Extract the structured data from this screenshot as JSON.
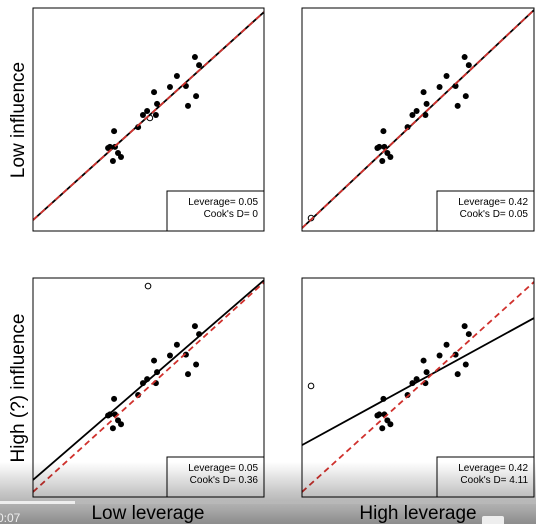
{
  "row_labels": [
    "Low influence",
    "High (?) influence"
  ],
  "column_labels": [
    "Low leverage",
    "High leverage"
  ],
  "player": {
    "time": "0:07"
  },
  "chart_data": [
    {
      "type": "scatter",
      "xlim": [
        0,
        100
      ],
      "ylim": [
        0,
        100
      ],
      "color": "#000000",
      "x": [
        70.1,
        71.9,
        62.3,
        59.3,
        52.4,
        66.2,
        67.1,
        70.6,
        53.7,
        49.4,
        53.2,
        47.6,
        45.5,
        35.1,
        33.3,
        35.5,
        36.8,
        38.1,
        34.6,
        32.5
      ],
      "values": [
        78.0,
        74.4,
        69.5,
        64.6,
        62.3,
        65.0,
        56.1,
        60.5,
        57.0,
        53.8,
        52.0,
        52.0,
        46.6,
        44.8,
        37.7,
        37.7,
        35.0,
        33.2,
        31.4,
        37.2
      ],
      "outlier": {
        "x": 50.6,
        "y": 50.7
      },
      "fit_lines": [
        {
          "color": "#000000",
          "dashed": false,
          "x": [
            0,
            100
          ],
          "y": [
            4.9,
            98.2
          ]
        },
        {
          "color": "#d0312d",
          "dashed": true,
          "x": [
            0,
            100
          ],
          "y": [
            4.9,
            98.2
          ]
        }
      ],
      "legend": [
        "Leverage= 0.05",
        "Cook's D= 0"
      ]
    },
    {
      "type": "scatter",
      "xlim": [
        0,
        100
      ],
      "ylim": [
        0,
        100
      ],
      "color": "#000000",
      "x": [
        70.1,
        71.9,
        62.3,
        59.3,
        52.4,
        66.2,
        67.1,
        70.6,
        53.7,
        49.4,
        53.2,
        47.6,
        45.5,
        35.1,
        33.3,
        35.5,
        36.8,
        38.1,
        34.6,
        32.5
      ],
      "values": [
        78.0,
        74.4,
        69.5,
        64.6,
        62.3,
        65.0,
        56.1,
        60.5,
        57.0,
        53.8,
        52.0,
        52.0,
        46.6,
        44.8,
        37.7,
        37.7,
        35.0,
        33.2,
        31.4,
        37.2
      ],
      "outlier": {
        "x": 3.9,
        "y": 5.8
      },
      "fit_lines": [
        {
          "color": "#000000",
          "dashed": false,
          "x": [
            0,
            100
          ],
          "y": [
            1.3,
            99.1
          ]
        },
        {
          "color": "#d0312d",
          "dashed": true,
          "x": [
            0,
            100
          ],
          "y": [
            1.3,
            99.1
          ]
        }
      ],
      "legend": [
        "Leverage= 0.42",
        "Cook's D= 0.05"
      ]
    },
    {
      "type": "scatter",
      "xlim": [
        0,
        100
      ],
      "ylim": [
        0,
        100
      ],
      "color": "#000000",
      "x": [
        70.1,
        71.9,
        62.3,
        59.3,
        52.4,
        66.2,
        67.1,
        70.6,
        53.7,
        49.4,
        53.2,
        47.6,
        45.5,
        35.1,
        33.3,
        35.5,
        36.8,
        38.1,
        34.6,
        32.5
      ],
      "values": [
        78.0,
        74.4,
        69.5,
        64.6,
        62.3,
        65.0,
        56.1,
        60.5,
        57.0,
        53.8,
        52.0,
        52.0,
        46.6,
        44.8,
        37.7,
        37.7,
        35.0,
        33.2,
        31.4,
        37.2
      ],
      "outlier": {
        "x": 49.8,
        "y": 96.3
      },
      "fit_lines": [
        {
          "color": "#000000",
          "dashed": false,
          "x": [
            0,
            100
          ],
          "y": [
            7.8,
            99.0
          ]
        },
        {
          "color": "#d0312d",
          "dashed": true,
          "x": [
            0,
            100
          ],
          "y": [
            2.3,
            98.0
          ]
        }
      ],
      "legend": [
        "Leverage= 0.05",
        "Cook's D= 0.36"
      ]
    },
    {
      "type": "scatter",
      "xlim": [
        0,
        100
      ],
      "ylim": [
        0,
        100
      ],
      "color": "#000000",
      "x": [
        70.1,
        71.9,
        62.3,
        59.3,
        52.4,
        66.2,
        67.1,
        70.6,
        53.7,
        49.4,
        53.2,
        47.6,
        45.5,
        35.1,
        33.3,
        35.5,
        36.8,
        38.1,
        34.6,
        32.5
      ],
      "values": [
        78.0,
        74.4,
        69.5,
        64.6,
        62.3,
        65.0,
        56.1,
        60.5,
        57.0,
        53.8,
        52.0,
        52.0,
        46.6,
        44.8,
        37.7,
        37.7,
        35.0,
        33.2,
        31.4,
        37.2
      ],
      "outlier": {
        "x": 3.9,
        "y": 50.7
      },
      "fit_lines": [
        {
          "color": "#000000",
          "dashed": false,
          "x": [
            0,
            100
          ],
          "y": [
            23.7,
            81.7
          ]
        },
        {
          "color": "#d0312d",
          "dashed": true,
          "x": [
            0,
            100
          ],
          "y": [
            2.3,
            98.2
          ]
        }
      ],
      "legend": [
        "Leverage= 0.42",
        "Cook's D= 4.11"
      ]
    }
  ]
}
